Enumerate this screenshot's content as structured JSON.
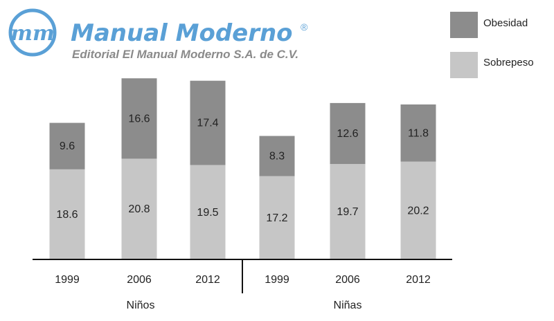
{
  "brand": {
    "logo_monogram": "mm",
    "name": "Manual Moderno",
    "registered": "®",
    "subtitle": "Editorial El Manual Moderno S.A. de C.V.",
    "color": "#5aa0d6"
  },
  "chart_data": {
    "type": "bar",
    "stacked": true,
    "groups": [
      {
        "label": "Niños",
        "categories": [
          "1999",
          "2006",
          "2012"
        ]
      },
      {
        "label": "Niñas",
        "categories": [
          "1999",
          "2006",
          "2012"
        ]
      }
    ],
    "categories": [
      "1999",
      "2006",
      "2012",
      "1999",
      "2006",
      "2012"
    ],
    "series": [
      {
        "name": "Sobrepeso",
        "color": "#c6c6c6",
        "values": [
          18.6,
          20.8,
          19.5,
          17.2,
          19.7,
          20.2
        ]
      },
      {
        "name": "Obesidad",
        "color": "#8c8c8c",
        "values": [
          9.6,
          16.6,
          17.4,
          8.3,
          12.6,
          11.8
        ]
      }
    ],
    "legend": [
      "Obesidad",
      "Sobrepeso"
    ],
    "legend_position": "top-right",
    "ylim": [
      0,
      40
    ],
    "grid": false
  }
}
